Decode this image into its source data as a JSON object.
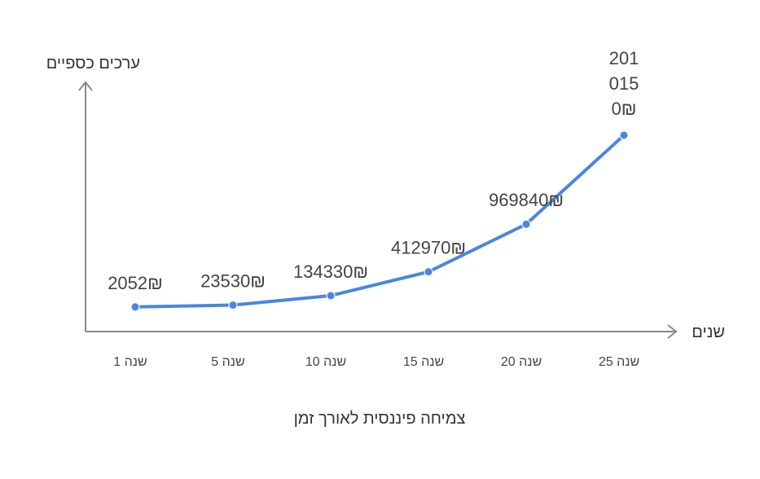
{
  "chart_data": {
    "type": "line",
    "title": "צמיחה פיננסית לאורך זמן",
    "xlabel": "שנים",
    "ylabel": "ערכים כספיים",
    "categories": [
      "שנה 1",
      "שנה 5",
      "שנה 10",
      "שנה 15",
      "שנה 20",
      "שנה 25"
    ],
    "values": [
      2052,
      23530,
      134330,
      412970,
      969840,
      2010150
    ],
    "data_labels": [
      "₪2052",
      "₪23530",
      "₪134330",
      "₪412970",
      "₪969840",
      "₪2010150"
    ],
    "legend": "none",
    "grid": false,
    "colors": {
      "line": "#4a86e0",
      "axis": "#888888"
    }
  }
}
